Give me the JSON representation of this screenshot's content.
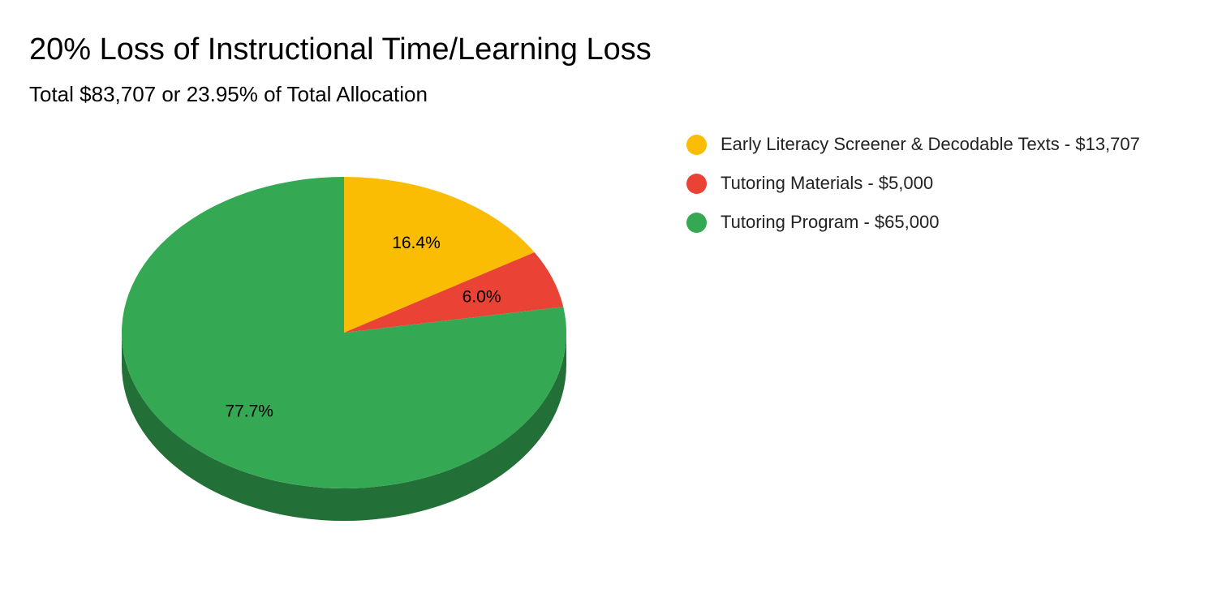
{
  "chart_data": {
    "type": "pie",
    "style": "3d",
    "title": "20% Loss of Instructional Time/Learning Loss",
    "subtitle": "Total $83,707 or 23.95% of Total Allocation",
    "legend_position": "right",
    "slices": [
      {
        "label": "Early Literacy Screener & Decodable Texts - $13,707",
        "value": 13707,
        "percent_label": "16.4%",
        "color": "#fbbc04"
      },
      {
        "label": "Tutoring Materials - $5,000",
        "value": 5000,
        "percent_label": "6.0%",
        "color": "#ea4335"
      },
      {
        "label": "Tutoring Program - $65,000",
        "value": 65000,
        "percent_label": "77.7%",
        "color": "#34a853"
      }
    ]
  }
}
